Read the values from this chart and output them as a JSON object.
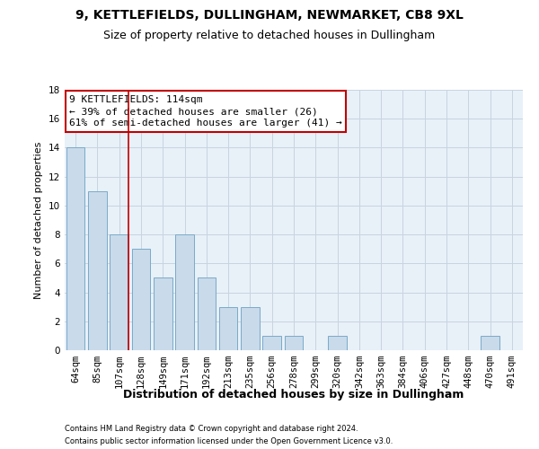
{
  "title": "9, KETTLEFIELDS, DULLINGHAM, NEWMARKET, CB8 9XL",
  "subtitle": "Size of property relative to detached houses in Dullingham",
  "xlabel": "Distribution of detached houses by size in Dullingham",
  "ylabel": "Number of detached properties",
  "categories": [
    "64sqm",
    "85sqm",
    "107sqm",
    "128sqm",
    "149sqm",
    "171sqm",
    "192sqm",
    "213sqm",
    "235sqm",
    "256sqm",
    "278sqm",
    "299sqm",
    "320sqm",
    "342sqm",
    "363sqm",
    "384sqm",
    "406sqm",
    "427sqm",
    "448sqm",
    "470sqm",
    "491sqm"
  ],
  "values": [
    14,
    11,
    8,
    7,
    5,
    8,
    5,
    3,
    3,
    1,
    1,
    0,
    1,
    0,
    0,
    0,
    0,
    0,
    0,
    1,
    0
  ],
  "bar_color": "#c9daea",
  "bar_edge_color": "#7aaac8",
  "highlight_index": 2,
  "highlight_color": "#c00000",
  "ylim": [
    0,
    18
  ],
  "yticks": [
    0,
    2,
    4,
    6,
    8,
    10,
    12,
    14,
    16,
    18
  ],
  "annotation_title": "9 KETTLEFIELDS: 114sqm",
  "annotation_line1": "← 39% of detached houses are smaller (26)",
  "annotation_line2": "61% of semi-detached houses are larger (41) →",
  "annotation_box_color": "#ffffff",
  "annotation_box_edge": "#c00000",
  "footer1": "Contains HM Land Registry data © Crown copyright and database right 2024.",
  "footer2": "Contains public sector information licensed under the Open Government Licence v3.0.",
  "bg_color": "#ffffff",
  "plot_bg_color": "#e8f0f8",
  "grid_color": "#c8d4e0",
  "title_fontsize": 10,
  "subtitle_fontsize": 9,
  "xlabel_fontsize": 9,
  "ylabel_fontsize": 8,
  "tick_fontsize": 7.5,
  "ann_fontsize": 8,
  "footer_fontsize": 6
}
